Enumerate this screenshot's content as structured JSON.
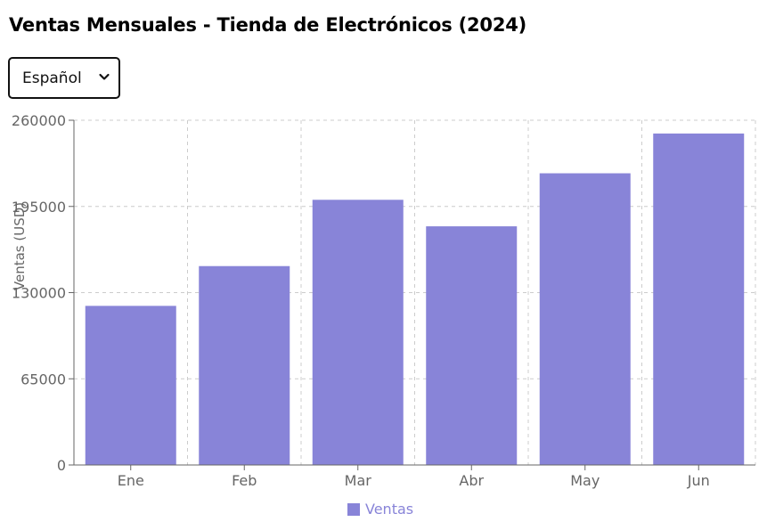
{
  "page": {
    "title": "Ventas Mensuales - Tienda de Electrónicos (2024)"
  },
  "language_select": {
    "selected": "Español",
    "icon": "chevron-down-icon"
  },
  "chart_data": {
    "type": "bar",
    "categories": [
      "Ene",
      "Feb",
      "Mar",
      "Abr",
      "May",
      "Jun"
    ],
    "series": [
      {
        "name": "Ventas",
        "values": [
          120000,
          150000,
          200000,
          180000,
          220000,
          250000
        ],
        "color": "#8884d8"
      }
    ],
    "ylabel": "Ventas (USD)",
    "xlabel": "",
    "ylim": [
      0,
      260000
    ],
    "yticks": [
      0,
      65000,
      130000,
      195000,
      260000
    ],
    "grid": true,
    "legend_position": "bottom"
  }
}
